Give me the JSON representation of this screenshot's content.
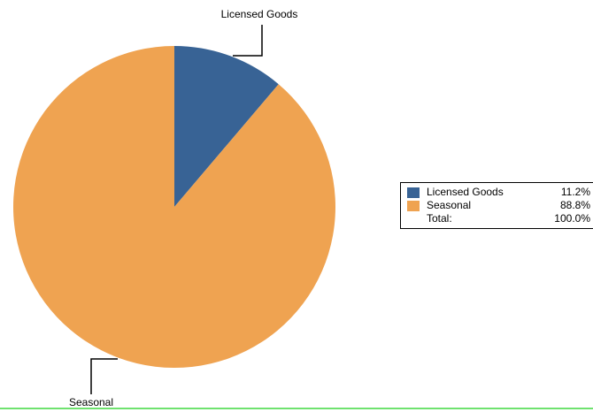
{
  "chart_data": {
    "type": "pie",
    "slices": [
      {
        "label": "Licensed Goods",
        "value": 11.2,
        "percent_label": "11.2%",
        "color": "#386395"
      },
      {
        "label": "Seasonal",
        "value": 88.8,
        "percent_label": "88.8%",
        "color": "#efa351"
      }
    ],
    "legend": {
      "placement": "right",
      "total_label": "Total:",
      "total_value": "100.0%"
    }
  }
}
